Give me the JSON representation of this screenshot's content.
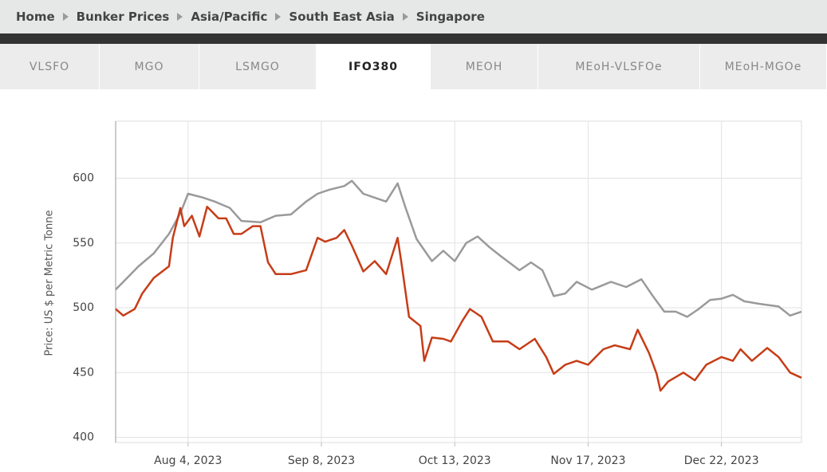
{
  "breadcrumb": [
    "Home",
    "Bunker Prices",
    "Asia/Pacific",
    "South East Asia",
    "Singapore"
  ],
  "tabs": [
    "VLSFO",
    "MGO",
    "LSMGO",
    "IFO380",
    "MEOH",
    "MEoH-VLSFOe",
    "MEoH-MGOe"
  ],
  "active_tab": "IFO380",
  "chart_data": {
    "type": "line",
    "y_label": "Price: US $ per Metric Tonne",
    "xlim": [
      "2023-07-16",
      "2024-01-12"
    ],
    "xticks": [
      {
        "value": "2023-08-04",
        "label": "Aug 4, 2023"
      },
      {
        "value": "2023-09-08",
        "label": "Sep 8, 2023"
      },
      {
        "value": "2023-10-13",
        "label": "Oct 13, 2023"
      },
      {
        "value": "2023-11-17",
        "label": "Nov 17, 2023"
      },
      {
        "value": "2023-12-22",
        "label": "Dec 22, 2023"
      }
    ],
    "ylim": [
      396,
      644
    ],
    "yticks": [
      400,
      450,
      500,
      550,
      600
    ],
    "grid": true,
    "series": [
      {
        "color": "#9a9a9a",
        "x": [
          "2023-07-16",
          "2023-07-18",
          "2023-07-22",
          "2023-07-26",
          "2023-07-30",
          "2023-08-02",
          "2023-08-04",
          "2023-08-08",
          "2023-08-11",
          "2023-08-15",
          "2023-08-18",
          "2023-08-23",
          "2023-08-27",
          "2023-08-31",
          "2023-09-04",
          "2023-09-07",
          "2023-09-10",
          "2023-09-14",
          "2023-09-16",
          "2023-09-19",
          "2023-09-22",
          "2023-09-25",
          "2023-09-28",
          "2023-09-30",
          "2023-10-03",
          "2023-10-07",
          "2023-10-10",
          "2023-10-13",
          "2023-10-16",
          "2023-10-19",
          "2023-10-22",
          "2023-10-25",
          "2023-10-30",
          "2023-11-02",
          "2023-11-05",
          "2023-11-08",
          "2023-11-11",
          "2023-11-14",
          "2023-11-18",
          "2023-11-23",
          "2023-11-27",
          "2023-12-01",
          "2023-12-04",
          "2023-12-07",
          "2023-12-10",
          "2023-12-13",
          "2023-12-16",
          "2023-12-19",
          "2023-12-22",
          "2023-12-25",
          "2023-12-28",
          "2024-01-01",
          "2024-01-06",
          "2024-01-09",
          "2024-01-12"
        ],
        "values": [
          514,
          520,
          532,
          542,
          557,
          573,
          588,
          585,
          582,
          577,
          567,
          566,
          571,
          572,
          582,
          588,
          591,
          594,
          598,
          588,
          585,
          582,
          596,
          578,
          553,
          536,
          544,
          536,
          550,
          555,
          547,
          540,
          529,
          535,
          529,
          509,
          511,
          520,
          514,
          520,
          516,
          522,
          509,
          497,
          497,
          493,
          499,
          506,
          507,
          510,
          505,
          503,
          501,
          494,
          497
        ]
      },
      {
        "color": "#c63d17",
        "x": [
          "2023-07-16",
          "2023-07-18",
          "2023-07-21",
          "2023-07-23",
          "2023-07-26",
          "2023-07-30",
          "2023-07-31",
          "2023-08-02",
          "2023-08-03",
          "2023-08-05",
          "2023-08-07",
          "2023-08-09",
          "2023-08-12",
          "2023-08-14",
          "2023-08-16",
          "2023-08-18",
          "2023-08-21",
          "2023-08-23",
          "2023-08-25",
          "2023-08-27",
          "2023-08-31",
          "2023-09-04",
          "2023-09-07",
          "2023-09-09",
          "2023-09-12",
          "2023-09-14",
          "2023-09-16",
          "2023-09-19",
          "2023-09-22",
          "2023-09-25",
          "2023-09-28",
          "2023-09-29",
          "2023-10-01",
          "2023-10-04",
          "2023-10-05",
          "2023-10-07",
          "2023-10-10",
          "2023-10-12",
          "2023-10-15",
          "2023-10-17",
          "2023-10-20",
          "2023-10-23",
          "2023-10-27",
          "2023-10-30",
          "2023-11-03",
          "2023-11-06",
          "2023-11-08",
          "2023-11-11",
          "2023-11-14",
          "2023-11-17",
          "2023-11-21",
          "2023-11-24",
          "2023-11-28",
          "2023-11-30",
          "2023-12-03",
          "2023-12-05",
          "2023-12-06",
          "2023-12-08",
          "2023-12-12",
          "2023-12-15",
          "2023-12-18",
          "2023-12-22",
          "2023-12-25",
          "2023-12-27",
          "2023-12-30",
          "2024-01-03",
          "2024-01-06",
          "2024-01-09",
          "2024-01-12"
        ],
        "values": [
          499,
          494,
          499,
          511,
          523,
          532,
          554,
          577,
          563,
          571,
          555,
          578,
          569,
          569,
          557,
          557,
          563,
          563,
          535,
          526,
          526,
          529,
          554,
          551,
          554,
          560,
          548,
          528,
          536,
          526,
          554,
          535,
          493,
          486,
          459,
          477,
          476,
          474,
          490,
          499,
          493,
          474,
          474,
          468,
          476,
          462,
          449,
          456,
          459,
          456,
          468,
          471,
          468,
          483,
          465,
          449,
          436,
          443,
          450,
          444,
          456,
          462,
          459,
          468,
          459,
          469,
          462,
          450,
          446
        ]
      }
    ]
  }
}
